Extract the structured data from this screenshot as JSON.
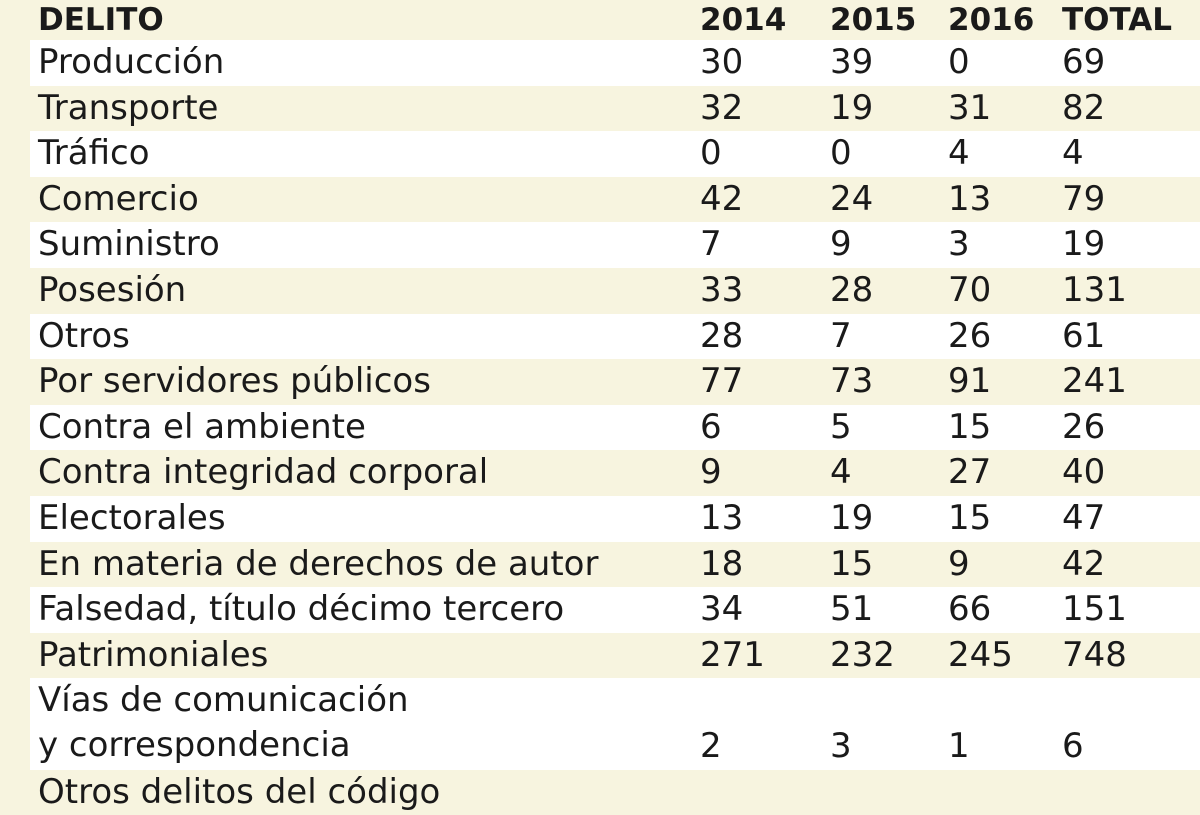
{
  "table": {
    "header": [
      "DELITO",
      "2014",
      "2015",
      "2016",
      "TOTAL"
    ],
    "rows": [
      [
        "Producción",
        30,
        39,
        0,
        69
      ],
      [
        "Transporte",
        32,
        19,
        31,
        82
      ],
      [
        "Tráfico",
        0,
        0,
        4,
        4
      ],
      [
        "Comercio",
        42,
        24,
        13,
        79
      ],
      [
        "Suministro",
        7,
        9,
        3,
        19
      ],
      [
        "Posesión",
        33,
        28,
        70,
        131
      ],
      [
        "Otros",
        28,
        7,
        26,
        61
      ],
      [
        "Por servidores públicos",
        77,
        73,
        91,
        241
      ],
      [
        "Contra el ambiente",
        6,
        5,
        15,
        26
      ],
      [
        "Contra integridad corporal",
        9,
        4,
        27,
        40
      ],
      [
        "Electorales",
        13,
        19,
        15,
        47
      ],
      [
        "En materia de derechos de autor",
        18,
        15,
        9,
        42
      ],
      [
        "Falsedad, título décimo tercero",
        34,
        51,
        66,
        151
      ],
      [
        "Patrimoniales",
        271,
        232,
        245,
        748
      ],
      [
        "Vías de comunicación\ny correspondencia",
        2,
        3,
        1,
        6
      ],
      [
        "Otros delitos del código"
      ]
    ]
  }
}
